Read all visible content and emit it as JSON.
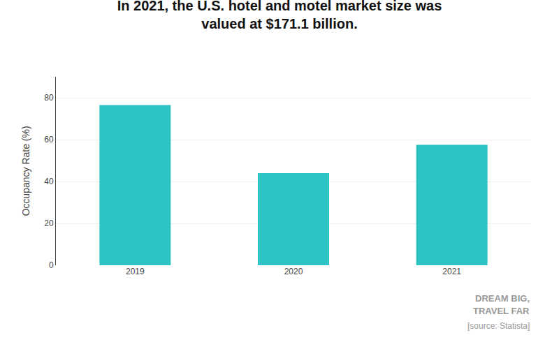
{
  "chart_data": {
    "type": "bar",
    "title": "In 2021, the U.S. hotel and motel market size was\nvalued at $171.1 billion.",
    "ylabel": "Occupancy Rate (%)",
    "categories": [
      "2019",
      "2020",
      "2021"
    ],
    "values": [
      76.5,
      44.0,
      57.5
    ],
    "color": "#2EC4C4",
    "ylim": [
      0,
      90
    ],
    "yticks": [
      0,
      20,
      40,
      60,
      80
    ],
    "grid": true,
    "annotations": [
      "DREAM BIG,",
      "TRAVEL FAR",
      "[source: Statista]"
    ]
  }
}
